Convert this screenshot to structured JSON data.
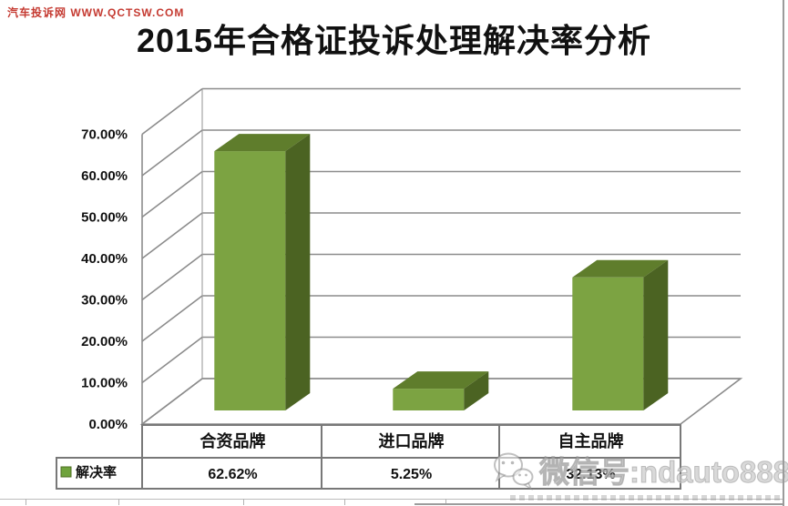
{
  "ui": {
    "site_watermark": {
      "text": "汽车投诉网  WWW.QCTSW.COM",
      "color": "#c53a31"
    },
    "title": "2015年合格证投诉处理解决率分析",
    "wechat": {
      "text": "微信号:ndauto888",
      "icon": "wechat-icon"
    }
  },
  "chart_data": {
    "type": "bar",
    "style": "3d-column",
    "title": "2015年合格证投诉处理解决率分析",
    "categories": [
      "合资品牌",
      "进口品牌",
      "自主品牌"
    ],
    "series": [
      {
        "name": "解决率",
        "values": [
          62.62,
          5.25,
          32.13
        ]
      }
    ],
    "value_labels": [
      "62.62%",
      "5.25%",
      "32.13%"
    ],
    "ytick_labels": [
      "0.00%",
      "10.00%",
      "20.00%",
      "30.00%",
      "40.00%",
      "50.00%",
      "60.00%",
      "70.00%"
    ],
    "ylim": [
      0,
      70
    ],
    "ytick_step": 10,
    "xlabel": "",
    "ylabel": "",
    "grid": true,
    "legend_position": "bottom-table-left",
    "colors": {
      "bar_front": "#7CA342",
      "bar_top": "#5F7D2C",
      "bar_side": "#4B6322",
      "legend_swatch": "#6FA33C",
      "gridline": "#8c8c8c",
      "table_border": "#787878",
      "text": "#111111"
    }
  }
}
